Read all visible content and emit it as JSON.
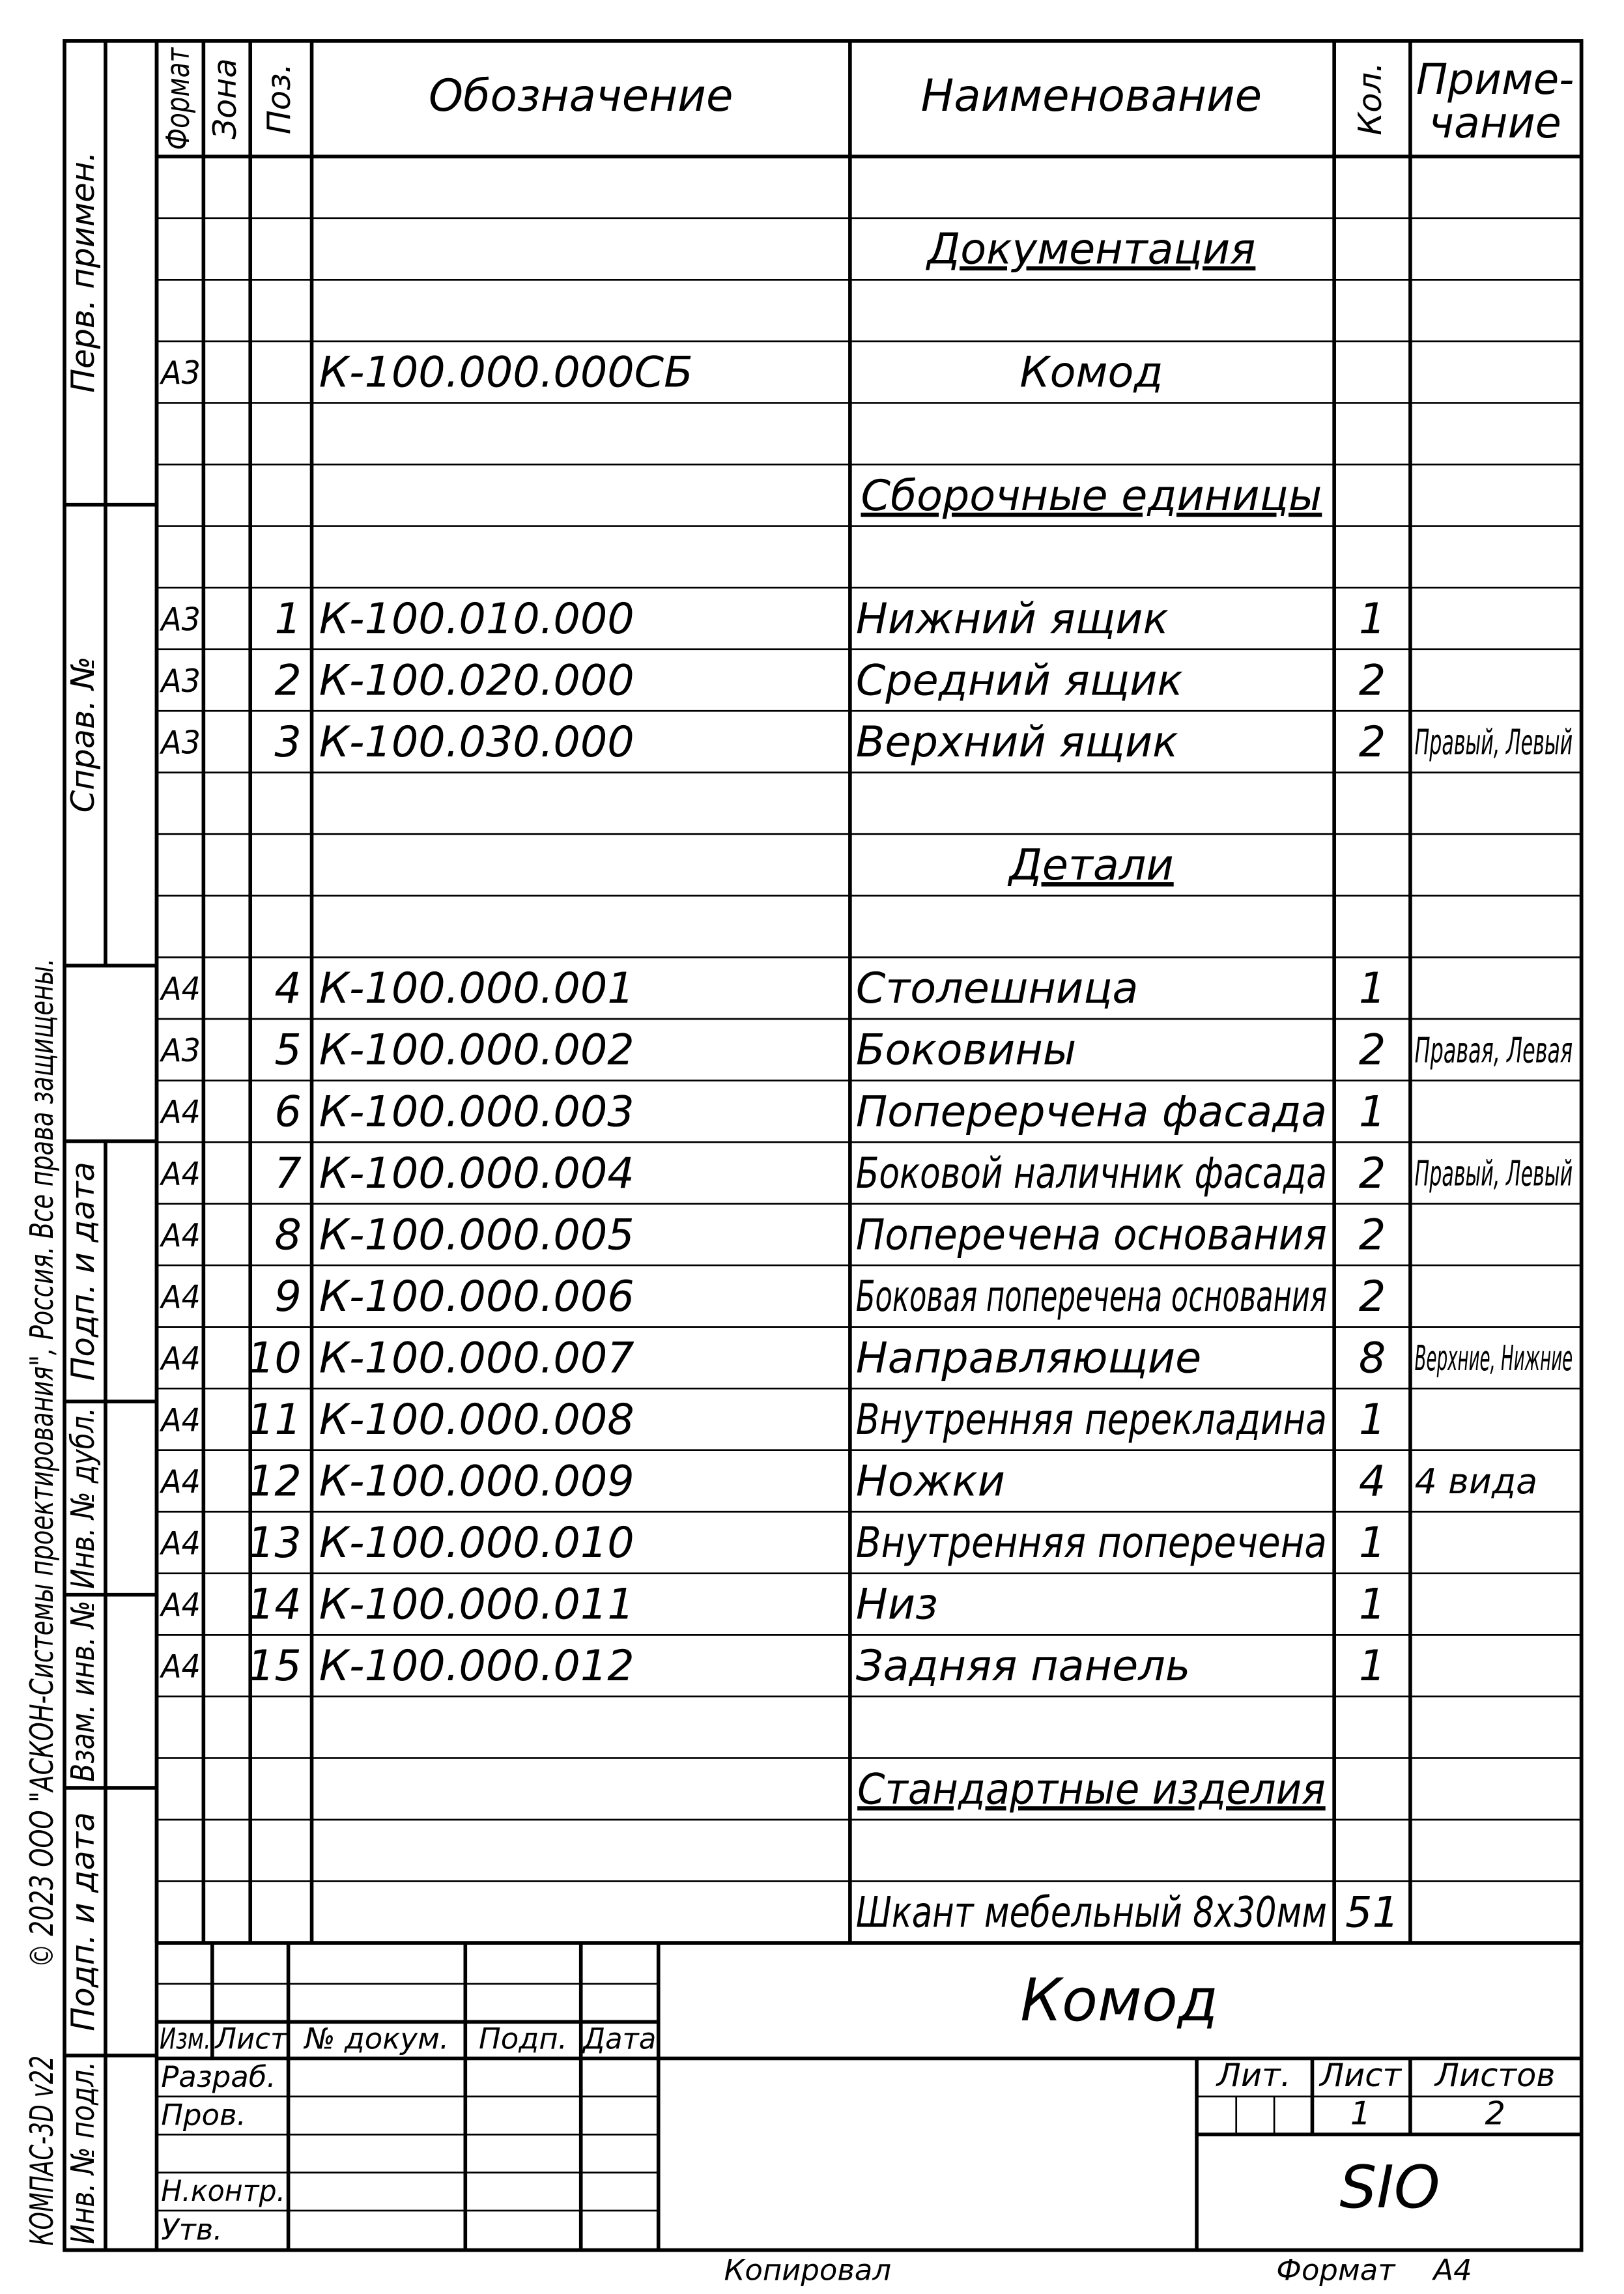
{
  "header": {
    "format": "Формат",
    "zone": "Зона",
    "pos": "Поз.",
    "designation": "Обозначение",
    "name": "Наименование",
    "qty": "Кол.",
    "note": [
      "Приме-",
      "чание"
    ]
  },
  "table": {
    "rows": [
      {},
      {
        "name": "Документация"
      },
      {},
      {
        "format": "А3",
        "designation": "К-100.000.000СБ",
        "name": "Комод"
      },
      {},
      {
        "name": "Сборочные единицы"
      },
      {},
      {
        "format": "А3",
        "pos": 1,
        "designation": "К-100.010.000",
        "name": "Нижний ящик",
        "qty": 1
      },
      {
        "format": "А3",
        "pos": 2,
        "designation": "К-100.020.000",
        "name": "Средний ящик",
        "qty": 2
      },
      {
        "format": "А3",
        "pos": 3,
        "designation": "К-100.030.000",
        "name": "Верхний ящик",
        "qty": 2,
        "note": "Правый, Левый"
      },
      {},
      {
        "name": "Детали"
      },
      {},
      {
        "format": "А4",
        "pos": 4,
        "designation": "К-100.000.001",
        "name": "Столешница",
        "qty": 1
      },
      {
        "format": "А3",
        "pos": 5,
        "designation": "К-100.000.002",
        "name": "Боковины",
        "qty": 2,
        "note": "Правая, Левая"
      },
      {
        "format": "А4",
        "pos": 6,
        "designation": "К-100.000.003",
        "name": "Поперерчена фасада",
        "qty": 1
      },
      {
        "format": "А4",
        "pos": 7,
        "designation": "К-100.000.004",
        "name": "Боковой наличник фасада",
        "qty": 2,
        "note": "Правый, Левый"
      },
      {
        "format": "А4",
        "pos": 8,
        "designation": "К-100.000.005",
        "name": "Поперечена основания",
        "qty": 2
      },
      {
        "format": "А4",
        "pos": 9,
        "designation": "К-100.000.006",
        "name": "Боковая поперечена основания",
        "qty": 2
      },
      {
        "format": "А4",
        "pos": 10,
        "designation": "К-100.000.007",
        "name": "Направляющие",
        "qty": 8,
        "note": "Верхние, Нижние"
      },
      {
        "format": "А4",
        "pos": 11,
        "designation": "К-100.000.008",
        "name": "Внутренняя перекладина",
        "qty": 1
      },
      {
        "format": "А4",
        "pos": 12,
        "designation": "К-100.000.009",
        "name": "Ножки",
        "qty": 4,
        "note": "4 вида"
      },
      {
        "format": "А4",
        "pos": 13,
        "designation": "К-100.000.010",
        "name": "Внутренняя поперечена",
        "qty": 1
      },
      {
        "format": "А4",
        "pos": 14,
        "designation": "К-100.000.011",
        "name": "Низ",
        "qty": 1
      },
      {
        "format": "А4",
        "pos": 15,
        "designation": "К-100.000.012",
        "name": "Задняя панель",
        "qty": 1
      },
      {},
      {
        "name": "Стандартные изделия"
      },
      {},
      {
        "name": "Шкант мебельный 8х30мм",
        "qty": 51
      }
    ]
  },
  "title_block": {
    "columns": [
      "Изм.",
      "Лист",
      "№ докум.",
      "Подп.",
      "Дата"
    ],
    "roles": [
      "Разраб.",
      "Пров.",
      "Н.контр.",
      "Утв."
    ],
    "name": "Комод",
    "lit": "Лит.",
    "sheet_label": "Лист",
    "sheets_label": "Листов",
    "sheet": 1,
    "sheets": 2,
    "code": "SIO"
  },
  "side": {
    "top": [
      "Перв. примен.",
      "Справ. №"
    ],
    "bottom": [
      "Подп. и дата",
      "Инв. № дубл.",
      "Взам. инв. №",
      "Подп. и дата",
      "Инв. № подл."
    ]
  },
  "margin": {
    "copyright": "© 2023 ООО \"АСКОН-Системы проектирования\", Россия. Все права защищены.",
    "version": "КОМПАС-3D v22"
  },
  "footer": {
    "copied": "Копировал",
    "format_label": "Формат",
    "format": "А4"
  }
}
